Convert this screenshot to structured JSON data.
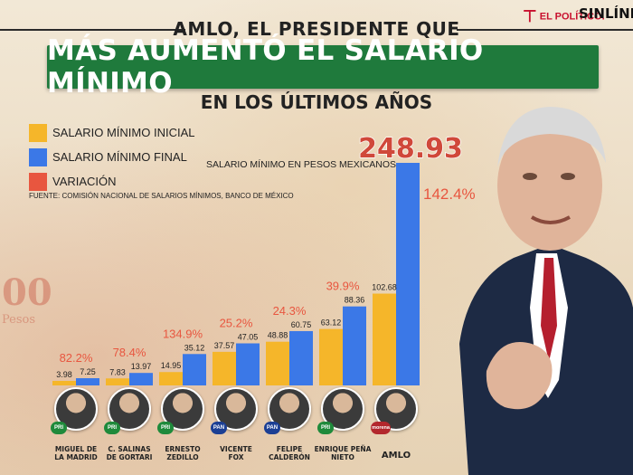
{
  "header": {
    "line1": "AMLO, EL PRESIDENTE QUE",
    "banner": "MÁS AUMENTÓ EL SALARIO MÍNIMO",
    "line3": "EN LOS ÚLTIMOS AÑOS"
  },
  "logos": {
    "elpolitico": "EL POLÍTICO.",
    "sinlinea": "SINLÍNEA"
  },
  "legend": [
    {
      "label": "SALARIO MÍNIMO INICIAL",
      "color": "#f5b62a"
    },
    {
      "label": "SALARIO MÍNIMO FINAL",
      "color": "#3b78e7"
    },
    {
      "label": "VARIACIÓN",
      "color": "#e8563f"
    }
  ],
  "chart_subtitle": "SALARIO MÍNIMO EN PESOS MEXICANOS",
  "source": "FUENTE: COMISIÓN NACIONAL DE SALARIOS MÍNIMOS, BANCO DE MÉXICO",
  "background_text": {
    "amount": "00",
    "unit": "Pesos"
  },
  "presidents": [
    {
      "name_line1": "MIGUEL DE",
      "name_line2": "LA MADRID",
      "party": "PRI",
      "party_color": "#1f8a3b"
    },
    {
      "name_line1": "C. SALINAS",
      "name_line2": "DE GORTARI",
      "party": "PRI",
      "party_color": "#1f8a3b"
    },
    {
      "name_line1": "ERNESTO",
      "name_line2": "ZEDILLO",
      "party": "PRI",
      "party_color": "#1f8a3b"
    },
    {
      "name_line1": "VICENTE",
      "name_line2": "FOX",
      "party": "PAN",
      "party_color": "#1c3f94"
    },
    {
      "name_line1": "FELIPE",
      "name_line2": "CALDERÓN",
      "party": "PAN",
      "party_color": "#1c3f94"
    },
    {
      "name_line1": "ENRIQUE PEÑA",
      "name_line2": "NIETO",
      "party": "PRI",
      "party_color": "#1f8a3b"
    },
    {
      "name_line1": "AMLO",
      "name_line2": "",
      "party": "morena",
      "party_color": "#b3282d"
    }
  ],
  "chart_data": {
    "type": "bar",
    "categories": [
      "MIGUEL DE LA MADRID",
      "C. SALINAS DE GORTARI",
      "ERNESTO ZEDILLO",
      "VICENTE FOX",
      "FELIPE CALDERÓN",
      "ENRIQUE PEÑA NIETO",
      "AMLO"
    ],
    "series": [
      {
        "name": "SALARIO MÍNIMO INICIAL",
        "values": [
          3.98,
          7.83,
          14.95,
          37.57,
          48.88,
          63.12,
          102.68
        ],
        "labels": [
          "3.98",
          "7.83",
          "14.95",
          "37.57",
          "48.88",
          "63.12",
          "102.68"
        ],
        "color": "#f5b62a"
      },
      {
        "name": "SALARIO MÍNIMO FINAL",
        "values": [
          7.25,
          13.97,
          35.12,
          47.05,
          60.75,
          88.36,
          248.93
        ],
        "labels": [
          "7.25",
          "13.97",
          "35.12",
          "47.05",
          "60.75",
          "88.36",
          "248.93"
        ],
        "color": "#3b78e7"
      }
    ],
    "variation": [
      "82.2%",
      "78.4%",
      "134.9%",
      "25.2%",
      "24.3%",
      "39.9%",
      "142.4%"
    ],
    "variation_color": "#e8563f",
    "ylim": [
      0,
      248.93
    ]
  }
}
